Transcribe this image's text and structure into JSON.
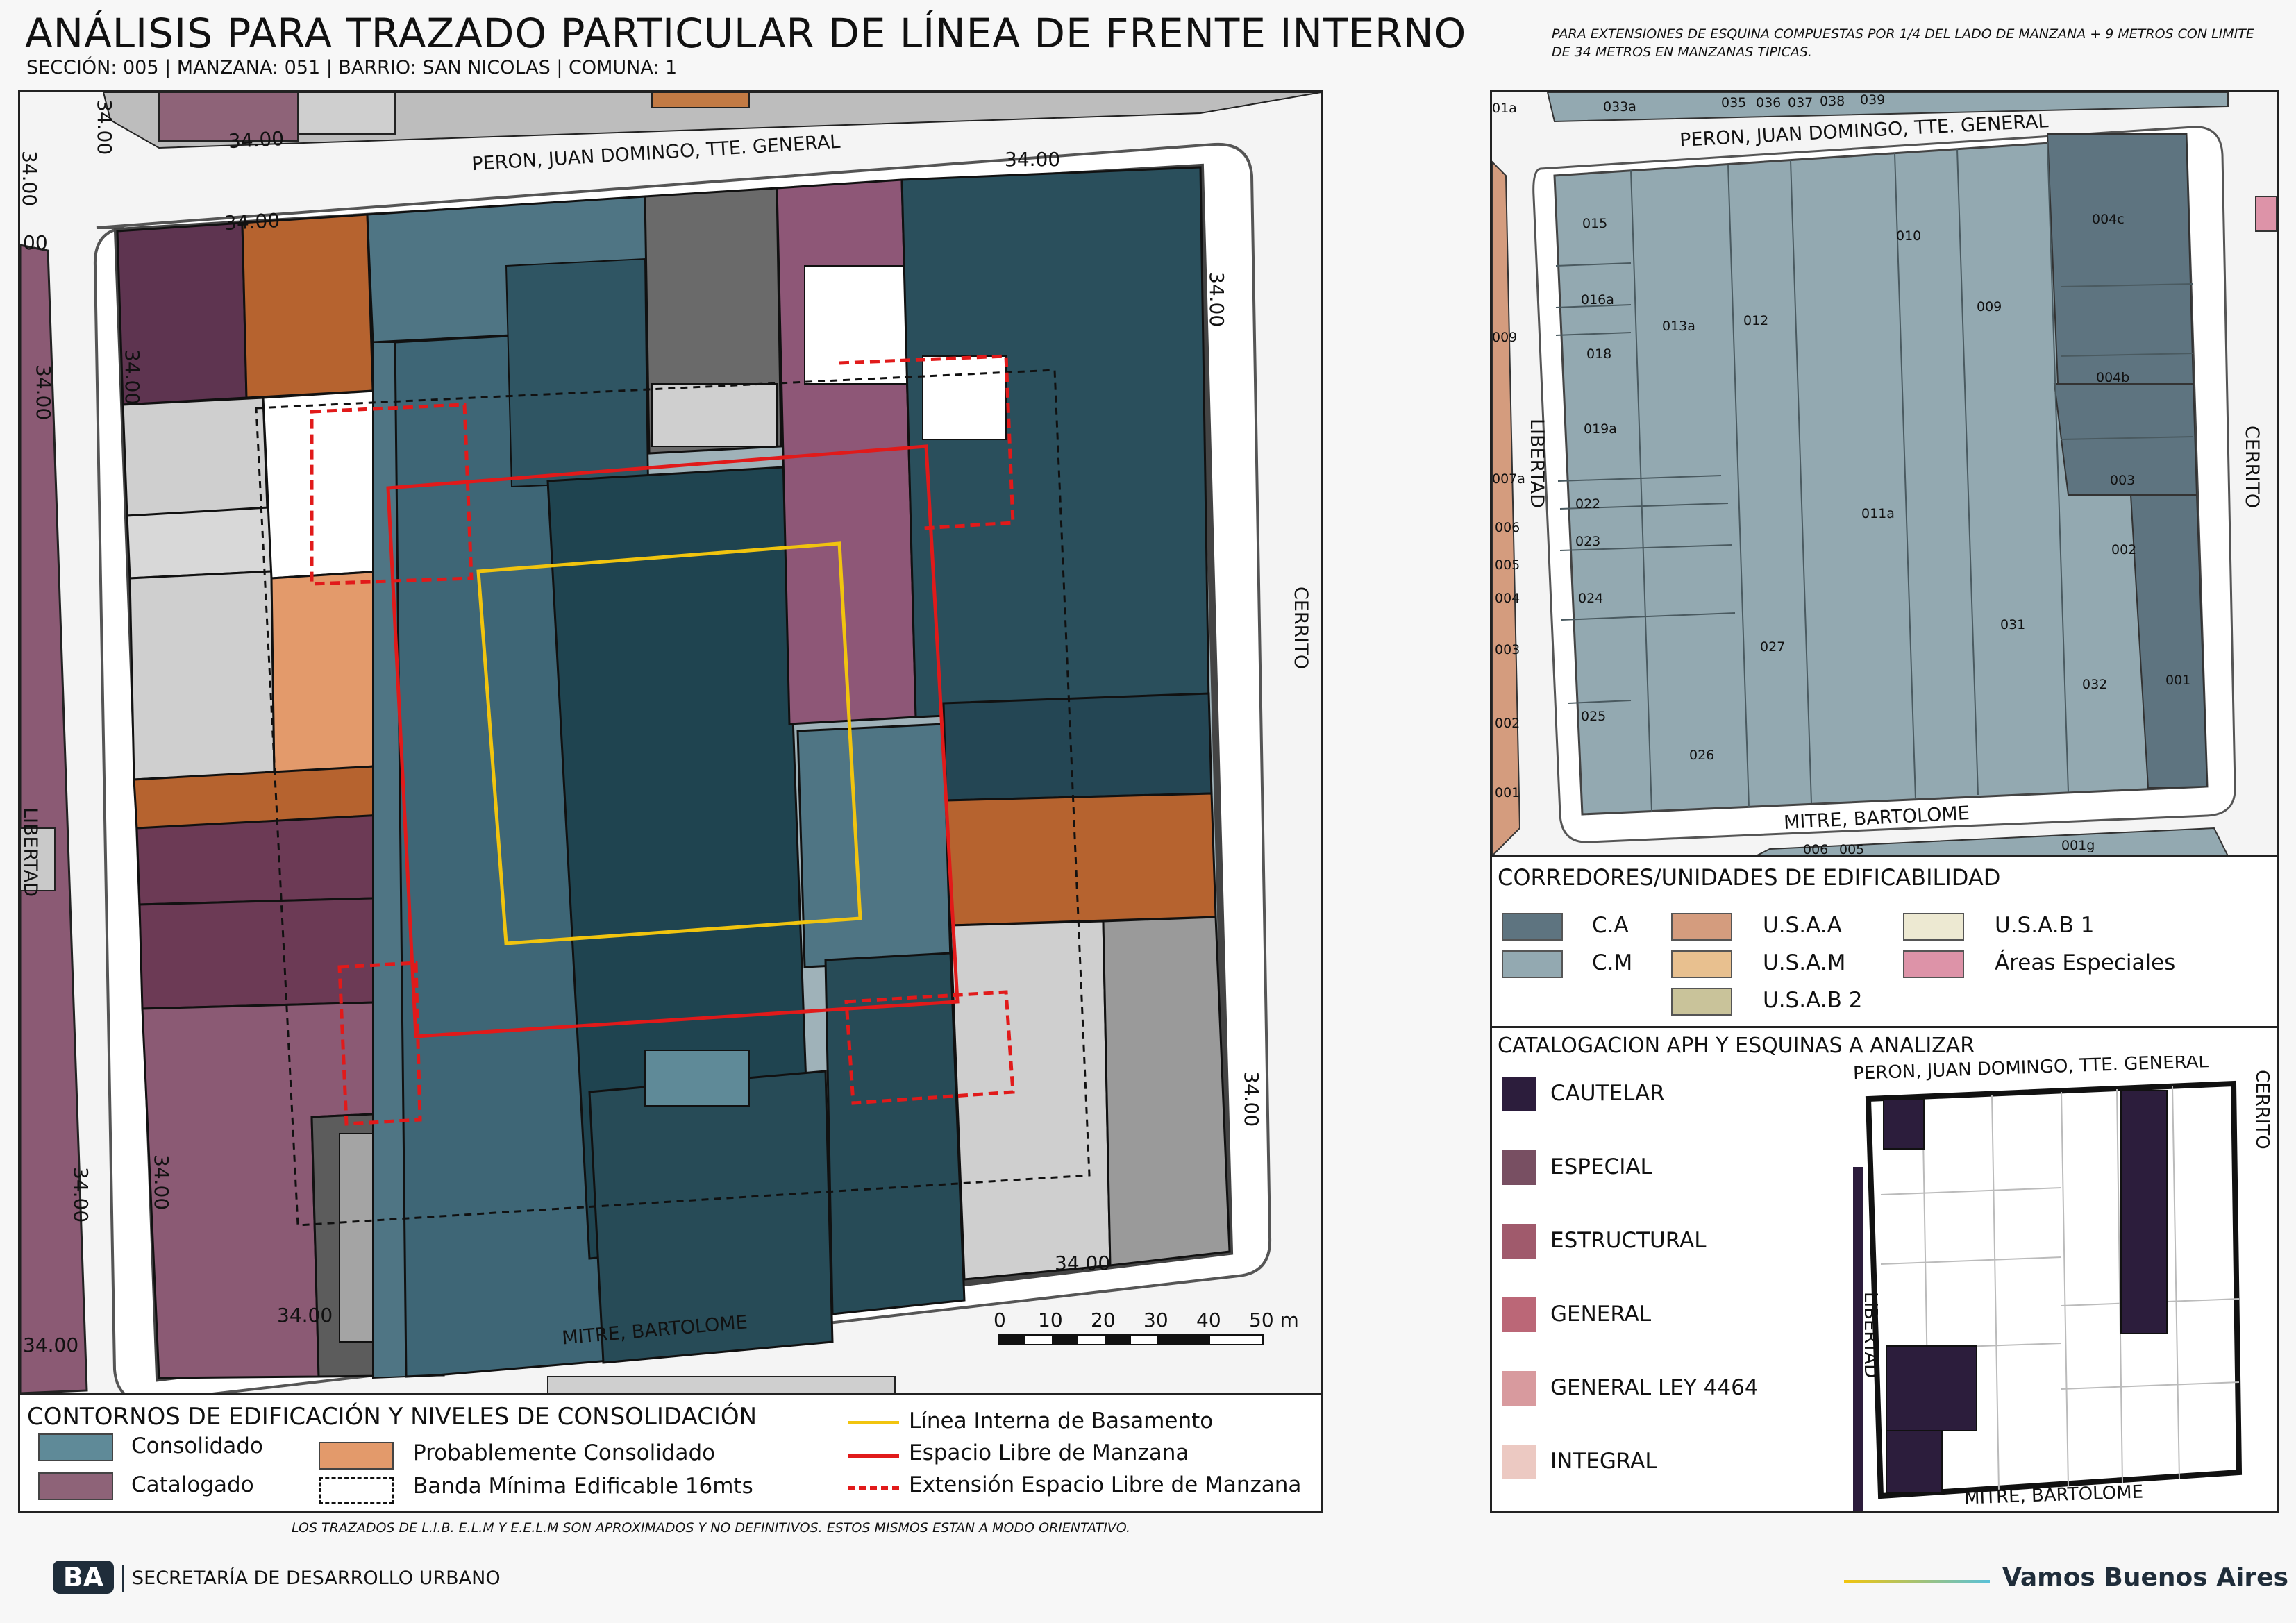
{
  "header": {
    "title": "ANÁLISIS PARA TRAZADO PARTICULAR DE LÍNEA DE FRENTE INTERNO",
    "subtitle": "SECCIÓN: 005 |  MANZANA: 051 | BARRIO: SAN NICOLAS | COMUNA: 1",
    "note": "PARA EXTENSIONES DE ESQUINA COMPUESTAS POR 1/4 DEL LADO DE MANZANA + 9 METROS CON LIMITE DE 34 METROS EN MANZANAS TIPICAS."
  },
  "main_map": {
    "streets": {
      "north": "PERON, JUAN DOMINGO, TTE. GENERAL",
      "south": "MITRE, BARTOLOME",
      "west": "LIBERTAD",
      "east": "CERRITO"
    },
    "dimension_label": "34.00",
    "partial_dimension": "00",
    "scale_labels": [
      "0",
      "10",
      "20",
      "30",
      "40",
      "50 m"
    ]
  },
  "parcel_map": {
    "streets": {
      "north": "PERON, JUAN DOMINGO, TTE. GENERAL",
      "south": "MITRE, BARTOLOME",
      "west": "LIBERTAD",
      "east": "CERRITO"
    },
    "top_lots": [
      "033a",
      "035",
      "036",
      "037",
      "038",
      "039",
      "01a"
    ],
    "lots": [
      "015",
      "016a",
      "018",
      "019a",
      "013a",
      "012",
      "010",
      "009",
      "004c",
      "004b",
      "003",
      "002",
      "001",
      "022",
      "023",
      "024",
      "025",
      "026",
      "027",
      "011a",
      "031",
      "032"
    ],
    "west_lots": [
      "009",
      "007a",
      "006",
      "005",
      "004",
      "003",
      "002",
      "001"
    ],
    "bottom_lots": [
      "006",
      "005",
      "001g"
    ]
  },
  "corridor_legend": {
    "title": "CORREDORES/UNIDADES DE EDIFICABILIDAD",
    "items": [
      {
        "label": "C.A",
        "color": "#5e7480"
      },
      {
        "label": "C.M",
        "color": "#93a9b1"
      },
      {
        "label": "U.S.A.A",
        "color": "#d49c7e"
      },
      {
        "label": "U.S.A.M",
        "color": "#e8c08f"
      },
      {
        "label": "U.S.A.B 2",
        "color": "#c9c39a"
      },
      {
        "label": "U.S.A.B 1",
        "color": "#ede9d2"
      },
      {
        "label": "Áreas Especiales",
        "color": "#dd93a8"
      }
    ]
  },
  "aph_legend": {
    "title": "CATALOGACION APH Y ESQUINAS A ANALIZAR",
    "items": [
      {
        "label": "CAUTELAR",
        "color": "#2c1d3c"
      },
      {
        "label": "ESPECIAL",
        "color": "#784f62"
      },
      {
        "label": "ESTRUCTURAL",
        "color": "#a05a6c"
      },
      {
        "label": "GENERAL",
        "color": "#bb6777"
      },
      {
        "label": "GENERAL LEY 4464",
        "color": "#d89a9e"
      },
      {
        "label": "INTEGRAL",
        "color": "#ecc9c2"
      }
    ],
    "mini_streets": {
      "north": "PERON, JUAN DOMINGO, TTE. GENERAL",
      "south": "MITRE, BARTOLOME",
      "west": "LIBERTAD",
      "east": "CERRITO"
    }
  },
  "contour_legend": {
    "title": "CONTORNOS DE EDIFICACIÓN Y NIVELES DE CONSOLIDACIÓN",
    "items": [
      {
        "label": "Consolidado",
        "color": "#5f8a98"
      },
      {
        "label": "Catalogado",
        "color": "#8e6378"
      },
      {
        "label": "Probablemente Consolidado",
        "color": "#e39a6b"
      },
      {
        "label": "Banda Mínima Edificable 16mts",
        "color": "#ffffff"
      }
    ],
    "lines": [
      {
        "label": "Línea Interna de Basamento",
        "color": "#f1c40f"
      },
      {
        "label": "Espacio Libre de Manzana",
        "color": "#e11a1a"
      },
      {
        "label": "Extensión Espacio Libre de Manzana",
        "color": "#e11a1a"
      }
    ]
  },
  "footer": {
    "disclaimer": "LOS TRAZADOS DE L.I.B. E.L.M Y E.E.L.M SON APROXIMADOS Y NO DEFINITIVOS. ESTOS MISMOS ESTAN A MODO ORIENTATIVO.",
    "logo_text": "BA",
    "secretaria": "SECRETARÍA DE DESARROLLO URBANO",
    "slogan": "Vamos Buenos Aires"
  }
}
